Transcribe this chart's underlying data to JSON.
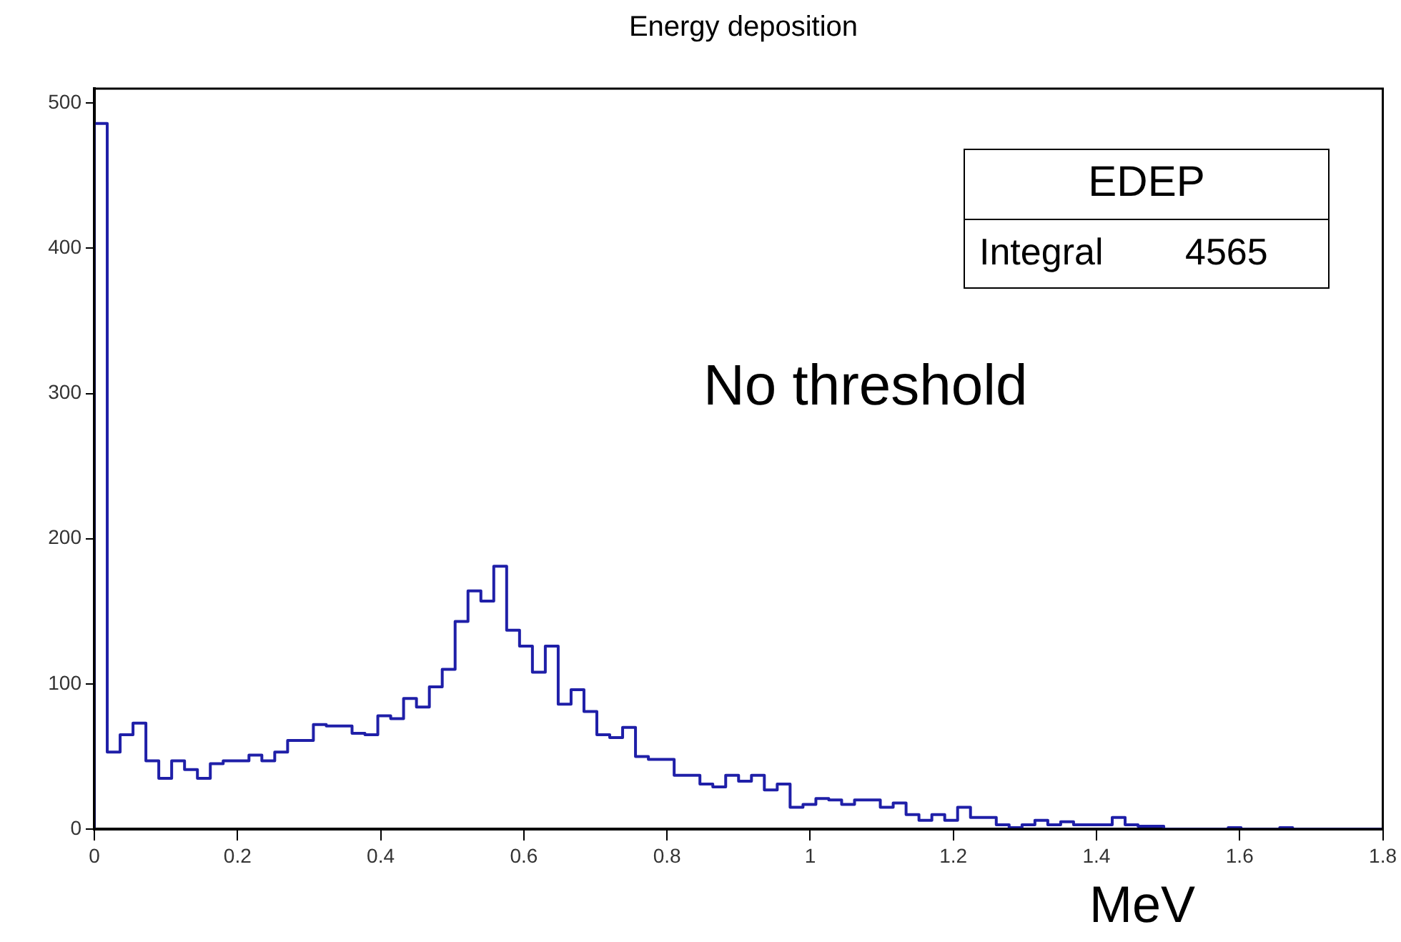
{
  "chart_data": {
    "type": "histogram",
    "title": "Energy deposition",
    "xlabel": "MeV",
    "annotations": [
      "EDEP",
      "Integral",
      "4565",
      "No threshold"
    ],
    "color": "#1f1fa8",
    "bins": [
      0,
      0.018,
      0.036,
      0.054,
      0.072,
      0.09,
      0.108,
      0.126,
      0.144,
      0.162,
      0.18,
      0.198,
      0.216,
      0.234,
      0.252,
      0.27,
      0.288,
      0.306,
      0.324,
      0.342,
      0.36,
      0.378,
      0.396,
      0.414,
      0.432,
      0.45,
      0.468,
      0.486,
      0.504,
      0.522,
      0.54,
      0.558,
      0.576,
      0.594,
      0.612,
      0.63,
      0.648,
      0.666,
      0.684,
      0.702,
      0.72,
      0.738,
      0.756,
      0.774,
      0.792,
      0.81,
      0.828,
      0.846,
      0.864,
      0.882,
      0.9,
      0.918,
      0.936,
      0.954,
      0.972,
      0.99,
      1.008,
      1.026,
      1.044,
      1.062,
      1.08,
      1.098,
      1.116,
      1.134,
      1.152,
      1.17,
      1.188,
      1.206,
      1.224,
      1.242,
      1.26,
      1.278,
      1.296,
      1.314,
      1.332,
      1.35,
      1.368,
      1.386,
      1.404,
      1.422,
      1.44,
      1.458,
      1.476,
      1.494,
      1.512,
      1.53,
      1.548,
      1.566,
      1.584,
      1.602,
      1.62,
      1.638,
      1.656,
      1.674,
      1.692,
      1.71,
      1.728,
      1.746,
      1.764,
      1.782,
      1.8
    ],
    "values": [
      486,
      53,
      65,
      73,
      47,
      35,
      47,
      41,
      35,
      45,
      47,
      47,
      51,
      47,
      53,
      61,
      61,
      72,
      71,
      71,
      66,
      65,
      78,
      76,
      90,
      84,
      98,
      110,
      143,
      164,
      157,
      181,
      137,
      126,
      108,
      126,
      86,
      96,
      81,
      65,
      63,
      70,
      50,
      48,
      48,
      37,
      37,
      31,
      29,
      37,
      33,
      37,
      27,
      31,
      15,
      17,
      21,
      20,
      17,
      20,
      20,
      15,
      18,
      10,
      6,
      10,
      6,
      15,
      8,
      8,
      3,
      1,
      3,
      6,
      3,
      5,
      3,
      3,
      3,
      8,
      3,
      2,
      2,
      0,
      0,
      0,
      0,
      0,
      1,
      0,
      0,
      0,
      1,
      0,
      0,
      0,
      0,
      0,
      0,
      0
    ],
    "xlim": [
      0,
      1.8
    ],
    "xticks": [
      0,
      0.2,
      0.4,
      0.6,
      0.8,
      1,
      1.2,
      1.4,
      1.6,
      1.8
    ],
    "ylim": [
      0,
      510
    ],
    "yticks": [
      0,
      100,
      200,
      300,
      400,
      500
    ],
    "grid": false,
    "legend": false
  }
}
